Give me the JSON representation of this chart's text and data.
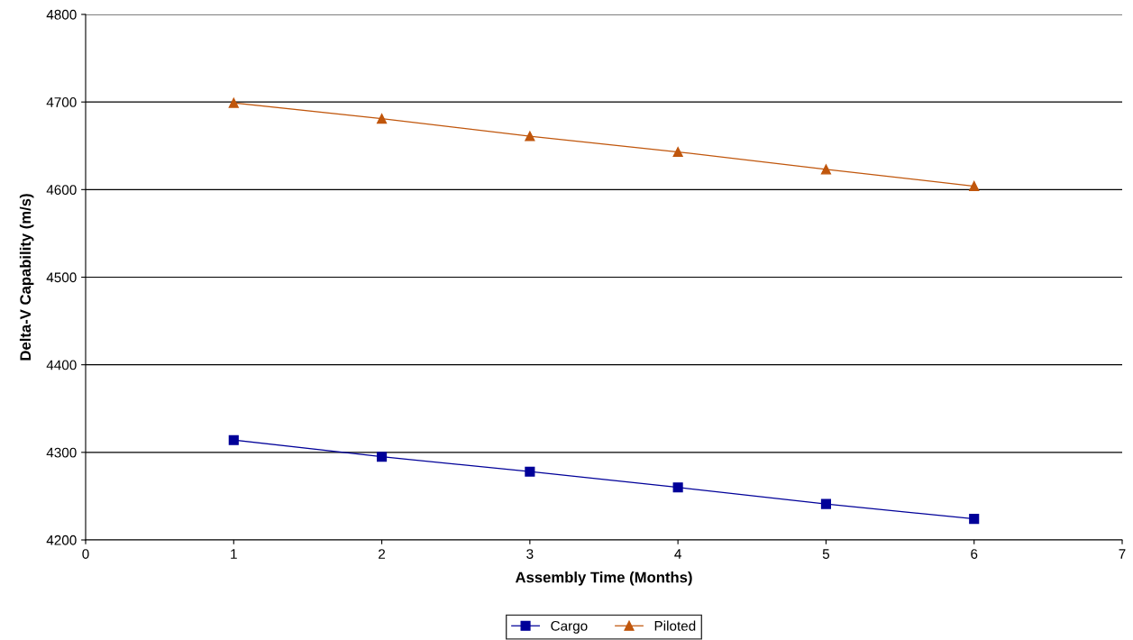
{
  "chart_data": {
    "type": "line",
    "xlabel": "Assembly Time (Months)",
    "ylabel": "Delta-V Capability (m/s)",
    "x": [
      1,
      2,
      3,
      4,
      5,
      6
    ],
    "series": [
      {
        "name": "Cargo",
        "color": "#000099",
        "marker": "square",
        "values": [
          4314,
          4295,
          4278,
          4260,
          4241,
          4224
        ]
      },
      {
        "name": "Piloted",
        "color": "#c0560c",
        "marker": "triangle",
        "values": [
          4699,
          4681,
          4661,
          4643,
          4623,
          4604
        ]
      }
    ],
    "xlim": [
      0,
      7
    ],
    "xticks": [
      0,
      1,
      2,
      3,
      4,
      5,
      6,
      7
    ],
    "ylim": [
      4200,
      4800
    ],
    "yticks": [
      4200,
      4300,
      4400,
      4500,
      4600,
      4700,
      4800
    ],
    "grid": "y",
    "legend": "bottom",
    "line_style": "solid"
  }
}
